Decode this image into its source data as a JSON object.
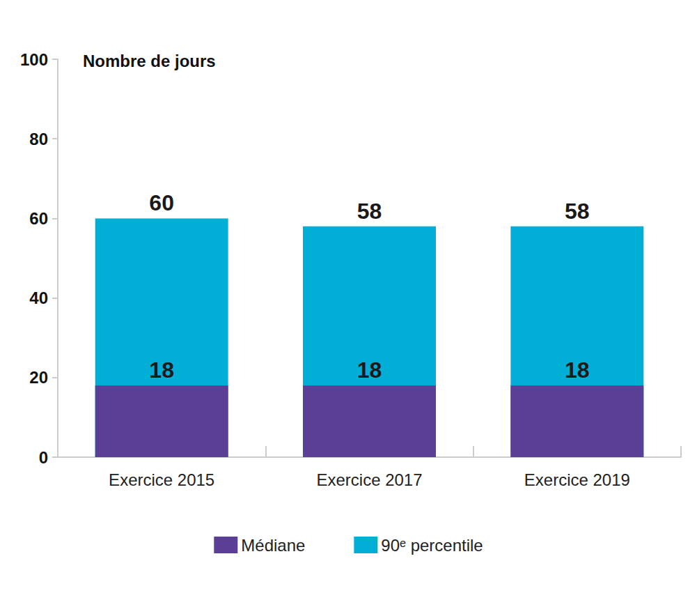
{
  "chart_data": {
    "type": "bar",
    "y_label": "Nombre de jours",
    "categories": [
      "Exercice 2015",
      "Exercice 2017",
      "Exercice 2019"
    ],
    "series": [
      {
        "name": "Médiane",
        "color": "#5b3e96",
        "values": [
          18,
          18,
          18
        ]
      },
      {
        "name": "90ᵉ percentile",
        "color": "#00aed6",
        "values": [
          60,
          58,
          58
        ]
      }
    ],
    "ylim": [
      0,
      100
    ],
    "yticks": [
      0,
      20,
      40,
      60,
      80,
      100
    ],
    "stacked": false,
    "grid": false,
    "legend": "bottom",
    "data_labels": true
  }
}
